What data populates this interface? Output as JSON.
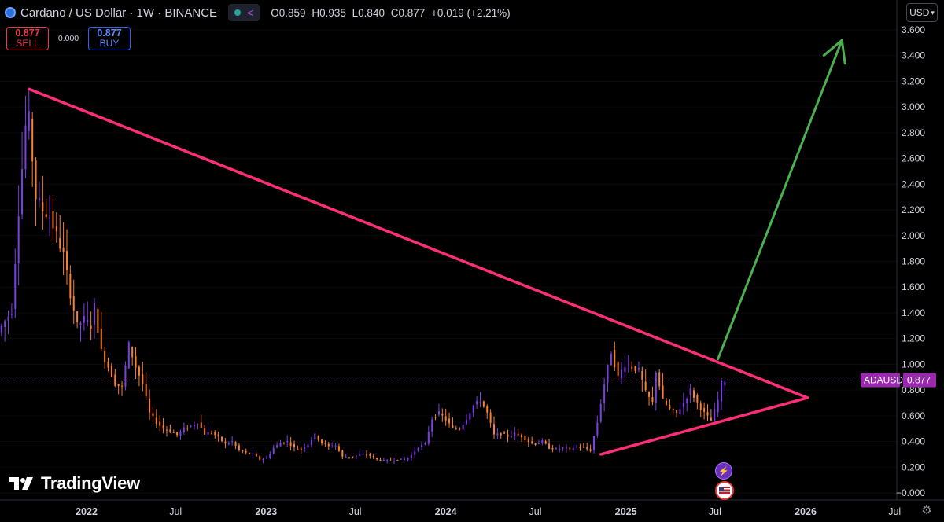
{
  "header": {
    "symbol": "Cardano / US Dollar",
    "interval": "1W",
    "exchange": "BINANCE",
    "title": "Cardano / US Dollar · 1W · BINANCE",
    "ohlc": {
      "o_label": "O",
      "o": "0.859",
      "h_label": "H",
      "h": "0.935",
      "l_label": "L",
      "l": "0.840",
      "c_label": "C",
      "c": "0.877",
      "change": "+0.019 (+2.21%)"
    }
  },
  "trade": {
    "sell_price": "0.877",
    "sell_label": "SELL",
    "spread": "0.000",
    "buy_price": "0.877",
    "buy_label": "BUY"
  },
  "currency": "USD",
  "brand": "TradingView",
  "price_tag": {
    "symbol": "ADAUSD",
    "value": "0.877"
  },
  "colors": {
    "background": "#000000",
    "candle_up": "#7b3fe4",
    "candle_down": "#ff7f2a",
    "trendline": "#ff2e78",
    "arrow": "#4caf50",
    "price_tag": "#9c27b0",
    "axis_text": "#d1d4dc"
  },
  "chart_data": {
    "type": "candlestick",
    "interval": "1W",
    "series_name": "ADAUSD",
    "y_axis": {
      "ticks": [
        "3.600",
        "3.400",
        "3.200",
        "3.000",
        "2.800",
        "2.600",
        "2.400",
        "2.200",
        "2.000",
        "1.800",
        "1.600",
        "1.400",
        "1.200",
        "1.000",
        "0.800",
        "0.600",
        "0.400",
        "0.200",
        "−0.000"
      ],
      "ylim": [
        -0.02,
        3.66
      ]
    },
    "x_axis": {
      "ticks": [
        {
          "label": "2022",
          "date": "2022-01-01",
          "bold": true
        },
        {
          "label": "Jul",
          "date": "2022-07-01",
          "bold": false
        },
        {
          "label": "2023",
          "date": "2023-01-01",
          "bold": true
        },
        {
          "label": "Jul",
          "date": "2023-07-01",
          "bold": false
        },
        {
          "label": "2024",
          "date": "2024-01-01",
          "bold": true
        },
        {
          "label": "Jul",
          "date": "2024-07-01",
          "bold": false
        },
        {
          "label": "2025",
          "date": "2025-01-01",
          "bold": true
        },
        {
          "label": "Jul",
          "date": "2025-07-01",
          "bold": false
        },
        {
          "label": "2026",
          "date": "2026-01-01",
          "bold": true
        },
        {
          "label": "Jul",
          "date": "2026-07-01",
          "bold": false
        }
      ],
      "xlim": [
        "2021-07-05",
        "2026-08-15"
      ]
    },
    "closes": [
      {
        "date": "2021-07-05",
        "close": 1.25
      },
      {
        "date": "2021-08-02",
        "close": 1.42
      },
      {
        "date": "2021-08-16",
        "close": 2.2
      },
      {
        "date": "2021-08-30",
        "close": 2.85
      },
      {
        "date": "2021-09-06",
        "close": 2.9
      },
      {
        "date": "2021-09-20",
        "close": 2.3
      },
      {
        "date": "2021-10-04",
        "close": 2.2
      },
      {
        "date": "2021-10-18",
        "close": 2.15
      },
      {
        "date": "2021-11-01",
        "close": 2.0
      },
      {
        "date": "2021-11-15",
        "close": 1.85
      },
      {
        "date": "2021-11-29",
        "close": 1.55
      },
      {
        "date": "2021-12-13",
        "close": 1.3
      },
      {
        "date": "2021-12-27",
        "close": 1.35
      },
      {
        "date": "2022-01-10",
        "close": 1.3
      },
      {
        "date": "2022-01-17",
        "close": 1.45
      },
      {
        "date": "2022-01-31",
        "close": 1.1
      },
      {
        "date": "2022-02-14",
        "close": 0.98
      },
      {
        "date": "2022-02-28",
        "close": 0.85
      },
      {
        "date": "2022-03-14",
        "close": 0.82
      },
      {
        "date": "2022-03-28",
        "close": 1.15
      },
      {
        "date": "2022-04-11",
        "close": 0.98
      },
      {
        "date": "2022-04-25",
        "close": 0.85
      },
      {
        "date": "2022-05-09",
        "close": 0.62
      },
      {
        "date": "2022-05-23",
        "close": 0.55
      },
      {
        "date": "2022-06-06",
        "close": 0.5
      },
      {
        "date": "2022-06-20",
        "close": 0.48
      },
      {
        "date": "2022-07-04",
        "close": 0.45
      },
      {
        "date": "2022-07-18",
        "close": 0.5
      },
      {
        "date": "2022-08-01",
        "close": 0.52
      },
      {
        "date": "2022-08-15",
        "close": 0.55
      },
      {
        "date": "2022-08-29",
        "close": 0.46
      },
      {
        "date": "2022-09-12",
        "close": 0.47
      },
      {
        "date": "2022-09-26",
        "close": 0.43
      },
      {
        "date": "2022-10-10",
        "close": 0.38
      },
      {
        "date": "2022-10-24",
        "close": 0.4
      },
      {
        "date": "2022-11-07",
        "close": 0.33
      },
      {
        "date": "2022-11-21",
        "close": 0.31
      },
      {
        "date": "2022-12-05",
        "close": 0.3
      },
      {
        "date": "2022-12-19",
        "close": 0.26
      },
      {
        "date": "2023-01-02",
        "close": 0.27
      },
      {
        "date": "2023-01-16",
        "close": 0.35
      },
      {
        "date": "2023-01-30",
        "close": 0.39
      },
      {
        "date": "2023-02-13",
        "close": 0.4
      },
      {
        "date": "2023-02-27",
        "close": 0.35
      },
      {
        "date": "2023-03-13",
        "close": 0.34
      },
      {
        "date": "2023-03-27",
        "close": 0.38
      },
      {
        "date": "2023-04-10",
        "close": 0.45
      },
      {
        "date": "2023-04-24",
        "close": 0.39
      },
      {
        "date": "2023-05-08",
        "close": 0.36
      },
      {
        "date": "2023-05-22",
        "close": 0.37
      },
      {
        "date": "2023-06-05",
        "close": 0.28
      },
      {
        "date": "2023-06-19",
        "close": 0.28
      },
      {
        "date": "2023-07-03",
        "close": 0.29
      },
      {
        "date": "2023-07-17",
        "close": 0.3
      },
      {
        "date": "2023-07-31",
        "close": 0.29
      },
      {
        "date": "2023-08-14",
        "close": 0.26
      },
      {
        "date": "2023-08-28",
        "close": 0.25
      },
      {
        "date": "2023-09-11",
        "close": 0.25
      },
      {
        "date": "2023-09-25",
        "close": 0.26
      },
      {
        "date": "2023-10-09",
        "close": 0.26
      },
      {
        "date": "2023-10-23",
        "close": 0.29
      },
      {
        "date": "2023-11-06",
        "close": 0.36
      },
      {
        "date": "2023-11-20",
        "close": 0.38
      },
      {
        "date": "2023-12-04",
        "close": 0.58
      },
      {
        "date": "2023-12-18",
        "close": 0.62
      },
      {
        "date": "2024-01-01",
        "close": 0.57
      },
      {
        "date": "2024-01-15",
        "close": 0.5
      },
      {
        "date": "2024-01-29",
        "close": 0.5
      },
      {
        "date": "2024-02-12",
        "close": 0.58
      },
      {
        "date": "2024-02-26",
        "close": 0.68
      },
      {
        "date": "2024-03-11",
        "close": 0.72
      },
      {
        "date": "2024-03-25",
        "close": 0.62
      },
      {
        "date": "2024-04-08",
        "close": 0.45
      },
      {
        "date": "2024-04-22",
        "close": 0.46
      },
      {
        "date": "2024-05-06",
        "close": 0.44
      },
      {
        "date": "2024-05-20",
        "close": 0.46
      },
      {
        "date": "2024-06-03",
        "close": 0.44
      },
      {
        "date": "2024-06-17",
        "close": 0.4
      },
      {
        "date": "2024-07-01",
        "close": 0.38
      },
      {
        "date": "2024-07-15",
        "close": 0.4
      },
      {
        "date": "2024-07-29",
        "close": 0.35
      },
      {
        "date": "2024-08-12",
        "close": 0.34
      },
      {
        "date": "2024-08-26",
        "close": 0.35
      },
      {
        "date": "2024-09-09",
        "close": 0.34
      },
      {
        "date": "2024-09-23",
        "close": 0.36
      },
      {
        "date": "2024-10-07",
        "close": 0.35
      },
      {
        "date": "2024-10-21",
        "close": 0.33
      },
      {
        "date": "2024-11-04",
        "close": 0.55
      },
      {
        "date": "2024-11-18",
        "close": 0.85
      },
      {
        "date": "2024-12-02",
        "close": 1.1
      },
      {
        "date": "2024-12-16",
        "close": 0.9
      },
      {
        "date": "2024-12-30",
        "close": 1.0
      },
      {
        "date": "2025-01-13",
        "close": 0.98
      },
      {
        "date": "2025-01-27",
        "close": 0.95
      },
      {
        "date": "2025-02-10",
        "close": 0.78
      },
      {
        "date": "2025-02-24",
        "close": 0.7
      },
      {
        "date": "2025-03-03",
        "close": 0.95
      },
      {
        "date": "2025-03-17",
        "close": 0.72
      },
      {
        "date": "2025-03-31",
        "close": 0.65
      },
      {
        "date": "2025-04-14",
        "close": 0.62
      },
      {
        "date": "2025-04-28",
        "close": 0.7
      },
      {
        "date": "2025-05-12",
        "close": 0.8
      },
      {
        "date": "2025-05-26",
        "close": 0.7
      },
      {
        "date": "2025-06-09",
        "close": 0.62
      },
      {
        "date": "2025-06-23",
        "close": 0.56
      },
      {
        "date": "2025-07-07",
        "close": 0.72
      },
      {
        "date": "2025-07-14",
        "close": 0.85
      },
      {
        "date": "2025-07-21",
        "close": 0.877
      }
    ],
    "annotations": {
      "trendline_upper": [
        {
          "date": "2021-09-06",
          "price": 3.14
        },
        {
          "date": "2026-01-05",
          "price": 0.74
        }
      ],
      "trendline_lower": [
        {
          "date": "2024-11-11",
          "price": 0.3
        },
        {
          "date": "2026-01-05",
          "price": 0.74
        }
      ],
      "arrow": {
        "from": {
          "date": "2025-07-07",
          "price": 1.04
        },
        "to": {
          "date": "2026-03-16",
          "price": 3.52
        }
      },
      "last_price_line": 0.877
    }
  }
}
